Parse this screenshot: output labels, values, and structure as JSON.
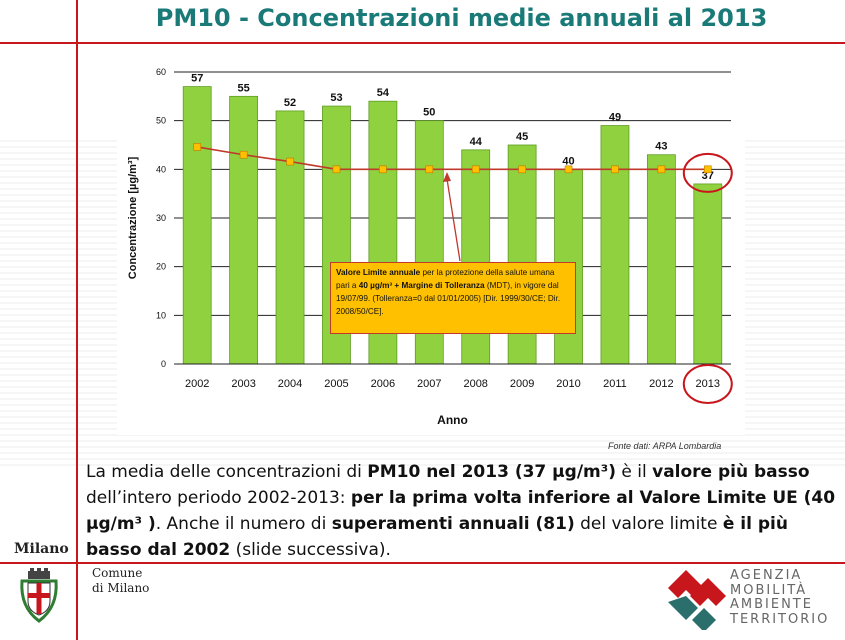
{
  "header": {
    "title": "PM10 - Concentrazioni medie annuali al 2013"
  },
  "chart_data": {
    "type": "bar",
    "categories": [
      "2002",
      "2003",
      "2004",
      "2005",
      "2006",
      "2007",
      "2008",
      "2009",
      "2010",
      "2011",
      "2012",
      "2013"
    ],
    "values": [
      57,
      55,
      52,
      53,
      54,
      50,
      44,
      45,
      40,
      49,
      43,
      37
    ],
    "limit_line": [
      44.6,
      43,
      41.6,
      40,
      40,
      40,
      40,
      40,
      40,
      40,
      40,
      40
    ],
    "ylabel": "Concentrazione [µg/m³]",
    "xlabel": "Anno",
    "ylim": [
      0,
      60
    ],
    "yticks": [
      "0",
      "10",
      "20",
      "30",
      "40",
      "50",
      "60"
    ],
    "grid": true,
    "colors": {
      "bar": "#8fd13f",
      "bar_edge": "#5f9c22",
      "line": "#c0392b",
      "marker": "#ffc000",
      "highlight": "#c8161d"
    },
    "highlight_category": "2013"
  },
  "callout": {
    "bold1": "Valore Limite annuale",
    "text1": " per la protezione della salute umana pari a ",
    "bold2": "40 µg/m³ + Margine di Tolleranza",
    "text2": " (MDT), in vigore dal 19/07/99. (Tolleranza=0 dal 01/01/2005) [Dir. 1999/30/CE; Dir. 2008/50/CE]."
  },
  "source": "Fonte dati: ARPA Lombardia",
  "body": {
    "t1": "La media delle concentrazioni di ",
    "b1": "PM10 nel 2013 (37 µg/m³)",
    "t2": " è il ",
    "b2": "valore più basso",
    "t3": " dell’intero periodo 2002-2013: ",
    "b3": "per la prima volta inferiore al Valore Limite UE (40 µg/m³ )",
    "t4": ". Anche il numero di ",
    "b4": "superamenti annuali (81)",
    "t5": " del valore limite ",
    "b5": "è il più basso dal 2002",
    "t6": " (slide successiva)."
  },
  "footer": {
    "milano": "Milano",
    "comune_line1": "Comune",
    "comune_line2": "di Milano",
    "amat": [
      "AGENZIA",
      "MOBILITÀ",
      "AMBIENTE",
      "TERRITORIO"
    ]
  }
}
